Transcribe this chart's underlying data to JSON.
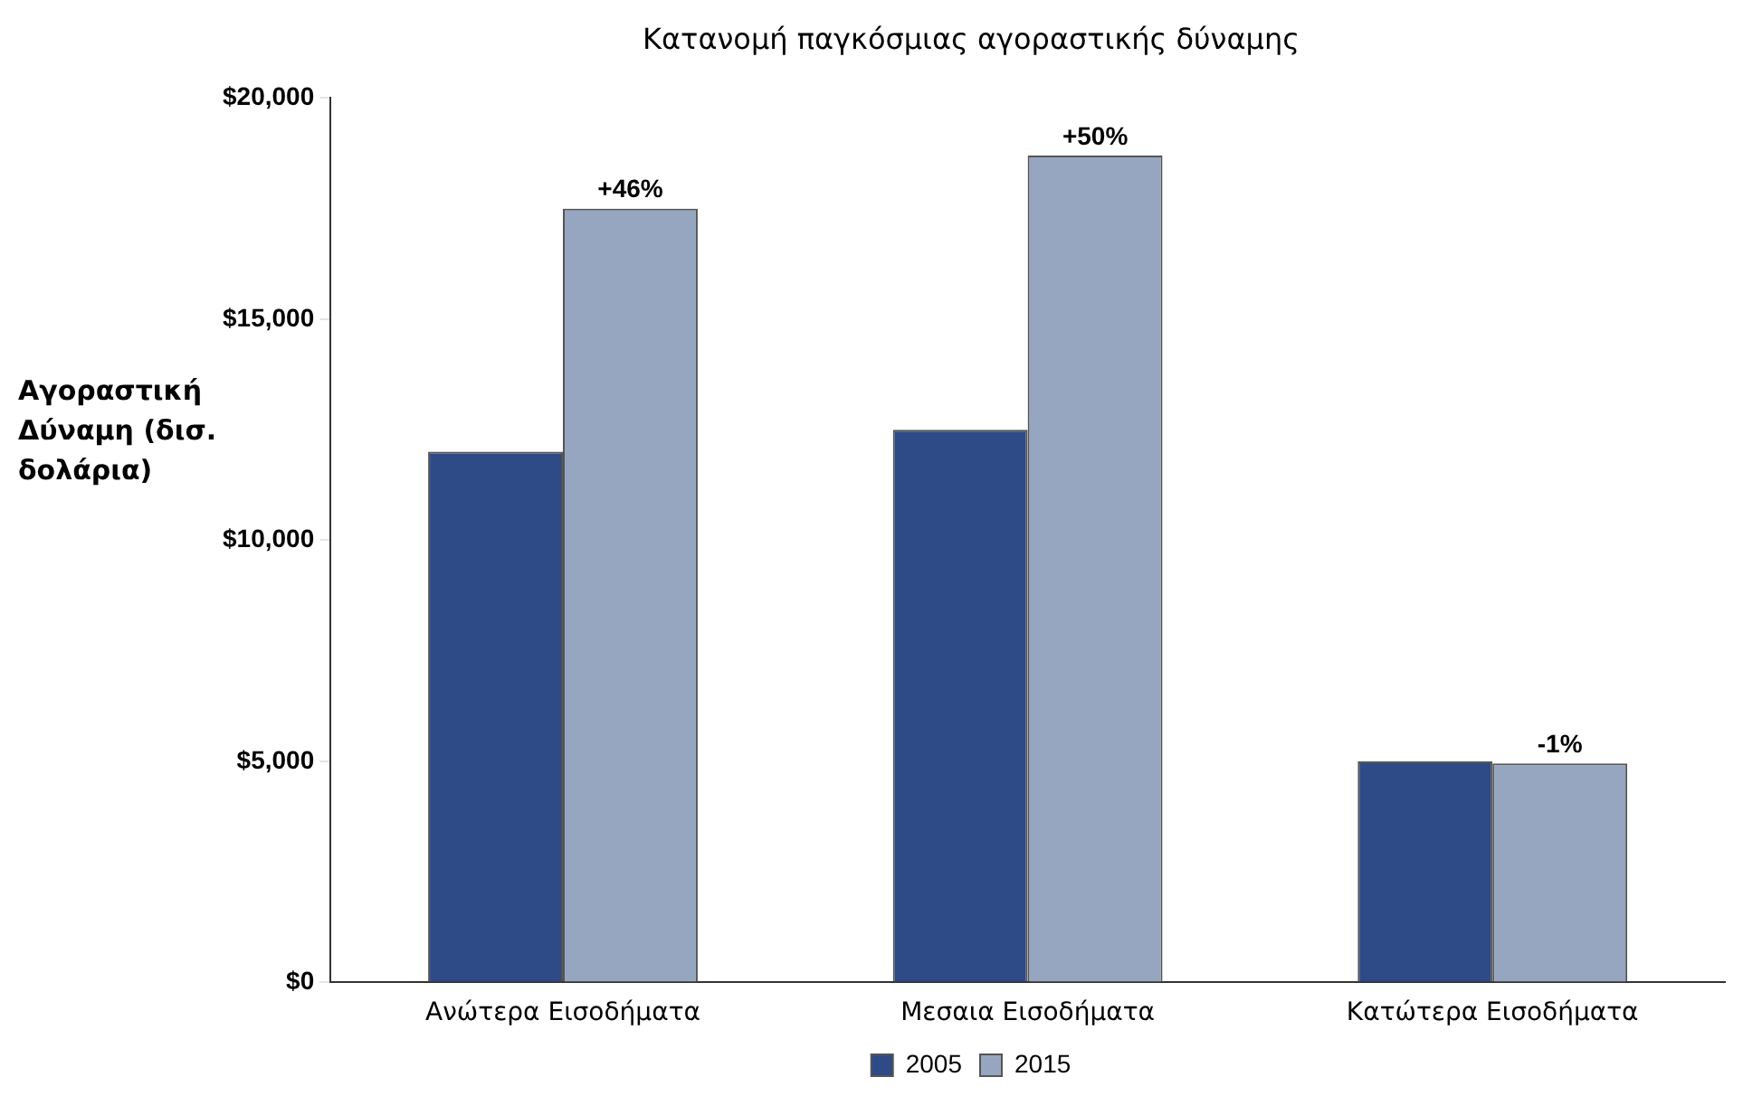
{
  "chart_data": {
    "type": "bar",
    "title": "Κατανομή παγκόσμιας αγοραστικής δύναμης",
    "ylabel": "Αγοραστική Δύναμη (δισ. δολάρια)",
    "categories": [
      "Ανώτερα Εισοδήματα",
      "Μεσαια Εισοδήματα",
      "Κατώτερα Εισοδήματα"
    ],
    "series": [
      {
        "name": "2005",
        "color": "#2e4a87",
        "values": [
          12000,
          12500,
          5000
        ]
      },
      {
        "name": "2015",
        "color": "#97a6c0",
        "values": [
          17500,
          18700,
          4950
        ]
      }
    ],
    "annotations": [
      {
        "text": "+46%",
        "x": "Ανώτερα Εισοδήματα",
        "y": 17500
      },
      {
        "text": "+50%",
        "x": "Μεσαια Εισοδήματα",
        "y": 18700
      },
      {
        "text": "-1%",
        "x": "Κατώτερα Εισοδήματα",
        "y": 4950
      }
    ],
    "ylim": [
      0,
      20000
    ],
    "yticks": [
      {
        "value": 0,
        "label": "$0"
      },
      {
        "value": 5000,
        "label": "$5,000"
      },
      {
        "value": 10000,
        "label": "$10,000"
      },
      {
        "value": 15000,
        "label": "$15,000"
      },
      {
        "value": 20000,
        "label": "$20,000"
      }
    ],
    "grid": false,
    "legend": "bottom"
  }
}
